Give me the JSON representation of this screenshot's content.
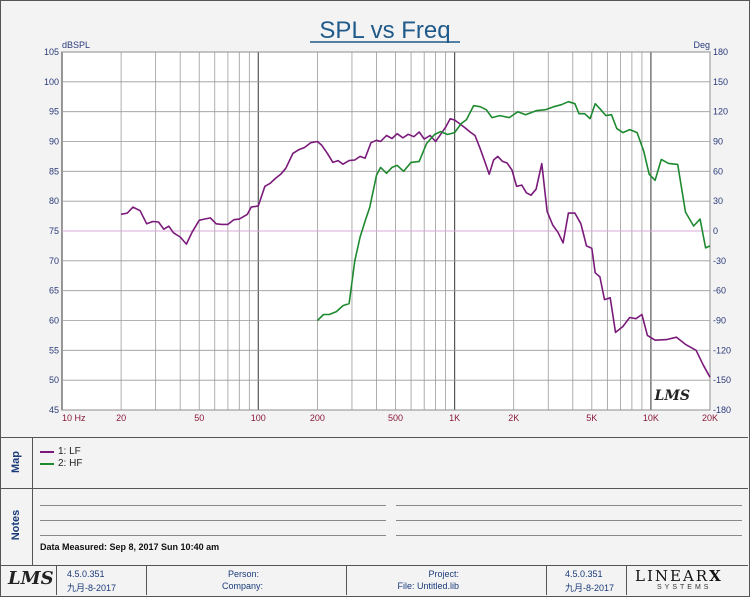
{
  "chart_data": {
    "type": "line",
    "title": "SPL vs Freq",
    "ylabel_left": "dBSPL",
    "ylabel_right": "Deg",
    "x_scale": "log",
    "xlim": [
      10,
      20000
    ],
    "ylim_left": [
      45,
      105
    ],
    "ylim_right": [
      -180,
      180
    ],
    "x_ticks": [
      {
        "v": 10,
        "label": "10 Hz"
      },
      {
        "v": 20,
        "label": "20"
      },
      {
        "v": 50,
        "label": "50"
      },
      {
        "v": 100,
        "label": "100"
      },
      {
        "v": 200,
        "label": "200"
      },
      {
        "v": 500,
        "label": "500"
      },
      {
        "v": 1000,
        "label": "1K"
      },
      {
        "v": 2000,
        "label": "2K"
      },
      {
        "v": 5000,
        "label": "5K"
      },
      {
        "v": 10000,
        "label": "10K"
      },
      {
        "v": 20000,
        "label": "20K"
      }
    ],
    "y_ticks_left": [
      45,
      50,
      55,
      60,
      65,
      70,
      75,
      80,
      85,
      90,
      95,
      100,
      105
    ],
    "y_ticks_right": [
      -180,
      -150,
      -120,
      -90,
      -60,
      -30,
      0,
      30,
      60,
      90,
      120,
      150,
      180
    ],
    "grid": true,
    "reference_line_db": 75,
    "series": [
      {
        "name": "1: LF",
        "color": "#7a1a7a",
        "axis": "left",
        "points": [
          [
            20,
            77.8
          ],
          [
            21.5,
            78
          ],
          [
            23,
            79
          ],
          [
            25,
            78.4
          ],
          [
            27,
            76.2
          ],
          [
            29,
            76.6
          ],
          [
            31,
            76.5
          ],
          [
            33,
            75.3
          ],
          [
            35,
            75.8
          ],
          [
            37,
            74.7
          ],
          [
            40,
            74
          ],
          [
            43,
            72.8
          ],
          [
            46,
            74.8
          ],
          [
            50,
            76.8
          ],
          [
            53,
            77
          ],
          [
            57,
            77.2
          ],
          [
            61,
            76.2
          ],
          [
            65,
            76.1
          ],
          [
            70,
            76.1
          ],
          [
            75,
            76.9
          ],
          [
            80,
            77
          ],
          [
            88,
            77.8
          ],
          [
            92,
            79
          ],
          [
            100,
            79.2
          ],
          [
            108,
            82.5
          ],
          [
            115,
            83
          ],
          [
            122,
            83.8
          ],
          [
            130,
            84.5
          ],
          [
            138,
            85.5
          ],
          [
            150,
            88
          ],
          [
            160,
            88.6
          ],
          [
            172,
            89
          ],
          [
            185,
            89.8
          ],
          [
            200,
            90
          ],
          [
            210,
            89.4
          ],
          [
            225,
            88
          ],
          [
            240,
            86.5
          ],
          [
            255,
            86.8
          ],
          [
            270,
            86.2
          ],
          [
            290,
            86.8
          ],
          [
            310,
            86.9
          ],
          [
            330,
            87.5
          ],
          [
            350,
            87.2
          ],
          [
            375,
            89.8
          ],
          [
            400,
            90.2
          ],
          [
            420,
            90
          ],
          [
            450,
            91
          ],
          [
            480,
            90.5
          ],
          [
            510,
            91.3
          ],
          [
            545,
            90.6
          ],
          [
            580,
            91.2
          ],
          [
            620,
            90.8
          ],
          [
            660,
            91.6
          ],
          [
            700,
            90.4
          ],
          [
            750,
            91
          ],
          [
            800,
            90
          ],
          [
            850,
            91.2
          ],
          [
            900,
            92.4
          ],
          [
            950,
            93.8
          ],
          [
            1000,
            93.6
          ],
          [
            1060,
            93
          ],
          [
            1120,
            92.4
          ],
          [
            1200,
            91.6
          ],
          [
            1270,
            91
          ],
          [
            1350,
            88.8
          ],
          [
            1430,
            86.5
          ],
          [
            1500,
            84.5
          ],
          [
            1580,
            86.9
          ],
          [
            1660,
            87.5
          ],
          [
            1750,
            86.7
          ],
          [
            1850,
            86.4
          ],
          [
            1960,
            85.2
          ],
          [
            2070,
            82.5
          ],
          [
            2200,
            82.7
          ],
          [
            2320,
            81.4
          ],
          [
            2450,
            81
          ],
          [
            2600,
            82
          ],
          [
            2780,
            86.3
          ],
          [
            2960,
            78.3
          ],
          [
            3160,
            76
          ],
          [
            3360,
            74.8
          ],
          [
            3570,
            73
          ],
          [
            3800,
            78
          ],
          [
            4100,
            78
          ],
          [
            4400,
            76.2
          ],
          [
            4700,
            72.5
          ],
          [
            5000,
            72.1
          ],
          [
            5200,
            68
          ],
          [
            5500,
            67.3
          ],
          [
            5800,
            63.5
          ],
          [
            6200,
            63.8
          ],
          [
            6600,
            58
          ],
          [
            7200,
            59
          ],
          [
            7800,
            60.5
          ],
          [
            8400,
            60.3
          ],
          [
            9000,
            61
          ],
          [
            9600,
            57.5
          ],
          [
            10500,
            56.7
          ],
          [
            12000,
            56.8
          ],
          [
            13500,
            57.2
          ],
          [
            15000,
            56
          ],
          [
            17000,
            55
          ],
          [
            18500,
            52.5
          ],
          [
            20000,
            50.5
          ]
        ]
      },
      {
        "name": "2: HF",
        "color": "#1e8a30",
        "axis": "right",
        "points": [
          [
            200,
            -90
          ],
          [
            215,
            -84
          ],
          [
            230,
            -84
          ],
          [
            250,
            -81
          ],
          [
            270,
            -75
          ],
          [
            290,
            -73
          ],
          [
            310,
            -30
          ],
          [
            330,
            -6
          ],
          [
            350,
            10
          ],
          [
            370,
            24
          ],
          [
            400,
            56
          ],
          [
            420,
            64
          ],
          [
            450,
            58
          ],
          [
            480,
            64
          ],
          [
            510,
            66
          ],
          [
            550,
            60
          ],
          [
            600,
            69
          ],
          [
            660,
            70
          ],
          [
            720,
            88
          ],
          [
            790,
            97
          ],
          [
            850,
            100
          ],
          [
            920,
            97
          ],
          [
            1000,
            99
          ],
          [
            1080,
            108
          ],
          [
            1150,
            112
          ],
          [
            1250,
            126
          ],
          [
            1350,
            125
          ],
          [
            1450,
            122
          ],
          [
            1550,
            114
          ],
          [
            1700,
            116
          ],
          [
            1900,
            114
          ],
          [
            2100,
            120
          ],
          [
            2300,
            117
          ],
          [
            2600,
            121
          ],
          [
            2900,
            122
          ],
          [
            3200,
            125
          ],
          [
            3500,
            127
          ],
          [
            3800,
            130
          ],
          [
            4100,
            128
          ],
          [
            4300,
            118
          ],
          [
            4600,
            118
          ],
          [
            4900,
            113
          ],
          [
            5200,
            128
          ],
          [
            5500,
            123
          ],
          [
            5900,
            116
          ],
          [
            6300,
            117
          ],
          [
            6700,
            103
          ],
          [
            7200,
            99
          ],
          [
            7800,
            102
          ],
          [
            8500,
            99
          ],
          [
            9200,
            80
          ],
          [
            9800,
            57
          ],
          [
            10500,
            51
          ],
          [
            11300,
            72
          ],
          [
            12300,
            68
          ],
          [
            13700,
            67
          ],
          [
            15000,
            19
          ],
          [
            16500,
            5
          ],
          [
            17800,
            12
          ],
          [
            19000,
            -17
          ],
          [
            20000,
            -15
          ]
        ]
      }
    ]
  },
  "logo_watermark": "LMS",
  "map_label": "Map",
  "notes_label": "Notes",
  "data_measured": "Data Measured: Sep 8, 2017 Sun 10:40 am",
  "footer": {
    "logo": "LMS",
    "version_left": "4.5.0.351",
    "date_left": "九月-8-2017",
    "person_label": "Person:",
    "company_label": "Company:",
    "project_label": "Project:",
    "file_label": "File: Untitled.lib",
    "version_right": "4.5.0.351",
    "date_right": "九月-8-2017",
    "brand": "LINEAR",
    "brand_x": "X",
    "brand_sub": "SYSTEMS"
  }
}
